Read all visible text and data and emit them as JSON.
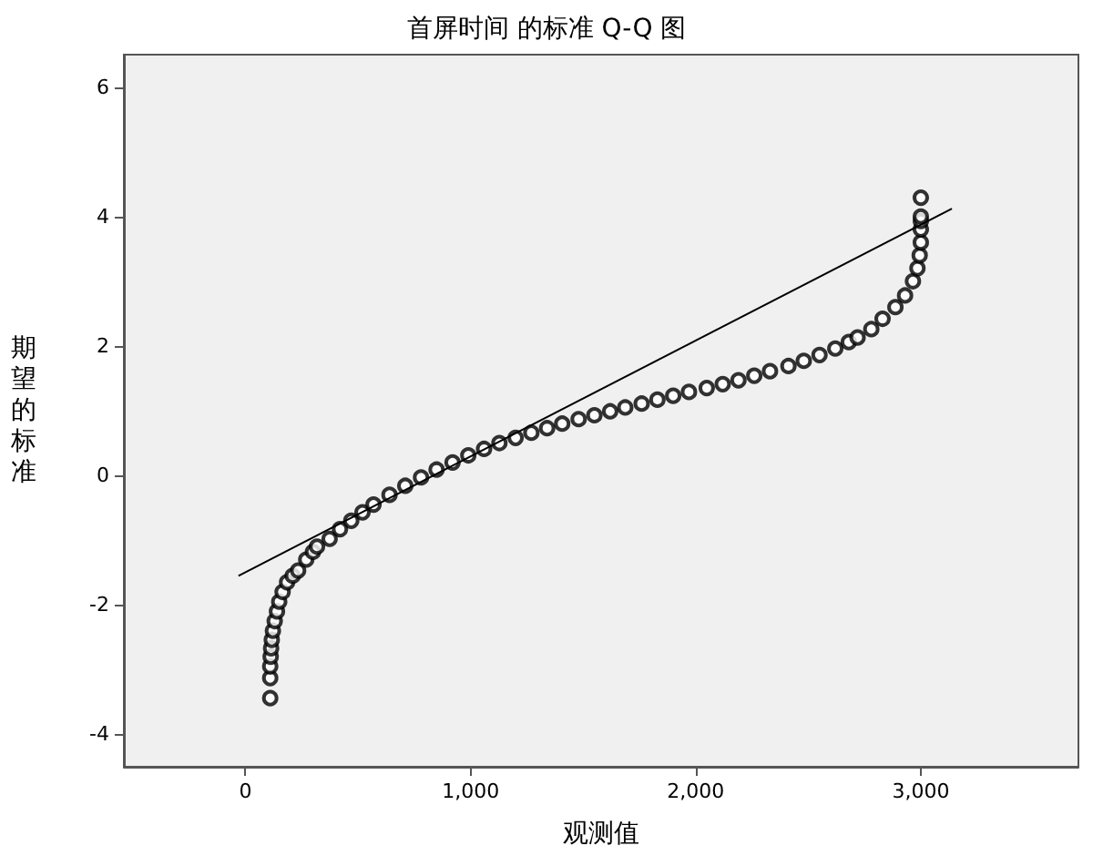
{
  "chart_data": {
    "type": "scatter",
    "title": "首屏时间 的标准 Q-Q 图",
    "xlabel": "观测值",
    "ylabel": "期望的标准",
    "xlim": [
      -540,
      3700
    ],
    "ylim": [
      -4.5,
      6.5
    ],
    "xticks": [
      0,
      {
        "value": 1000,
        "label": "1,000"
      },
      {
        "value": 2000,
        "label": "2,000"
      },
      {
        "value": 3000,
        "label": "3,000"
      }
    ],
    "yticks": [
      -4,
      -2,
      0,
      2,
      4,
      6
    ],
    "grid": false,
    "marker": "circle",
    "series": [
      {
        "color": "#000000",
        "x": [
          110,
          110,
          110,
          112,
          114,
          117,
          122,
          130,
          140,
          150,
          165,
          185,
          210,
          234,
          270,
          300,
          318,
          374,
          420,
          470,
          520,
          569,
          640,
          710,
          780,
          849,
          920,
          990,
          1060,
          1128,
          1200,
          1270,
          1340,
          1407,
          1480,
          1550,
          1620,
          1687,
          1760,
          1830,
          1900,
          1970,
          2049,
          2120,
          2190,
          2260,
          2330,
          2412,
          2480,
          2550,
          2620,
          2680,
          2719,
          2780,
          2830,
          2887,
          2930,
          2965,
          2985,
          2995,
          3000,
          3000,
          3000,
          3000,
          3000
        ],
        "values": [
          -3.44,
          -3.13,
          -2.95,
          -2.8,
          -2.67,
          -2.54,
          -2.4,
          -2.25,
          -2.1,
          -1.95,
          -1.8,
          -1.65,
          -1.55,
          -1.47,
          -1.3,
          -1.18,
          -1.1,
          -0.98,
          -0.83,
          -0.7,
          -0.57,
          -0.45,
          -0.3,
          -0.16,
          -0.03,
          0.09,
          0.2,
          0.31,
          0.41,
          0.5,
          0.58,
          0.66,
          0.73,
          0.8,
          0.87,
          0.93,
          0.99,
          1.05,
          1.11,
          1.17,
          1.23,
          1.29,
          1.35,
          1.41,
          1.47,
          1.54,
          1.61,
          1.69,
          1.77,
          1.86,
          1.96,
          2.06,
          2.13,
          2.26,
          2.42,
          2.6,
          2.78,
          3.0,
          3.2,
          3.4,
          3.6,
          3.8,
          3.93,
          4.0,
          4.29
        ]
      },
      {
        "type": "line",
        "color": "#000000",
        "marker": "none",
        "x": [
          -31,
          3138
        ],
        "values": [
          -1.55,
          4.12
        ]
      }
    ]
  }
}
